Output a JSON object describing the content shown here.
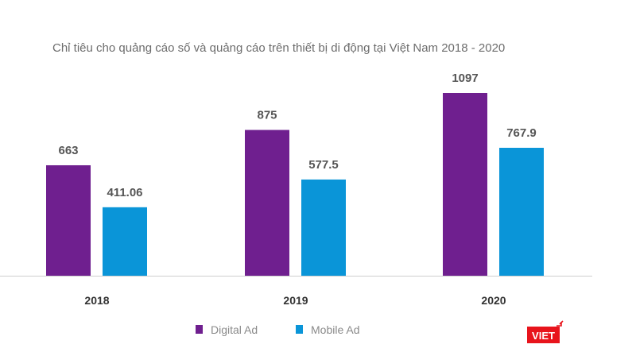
{
  "chart_data": {
    "type": "bar",
    "title": "Chỉ tiêu cho quảng cáo số và quảng cáo trên thiết bị di động tại Việt Nam 2018 - 2020",
    "categories": [
      "2018",
      "2019",
      "2020"
    ],
    "series": [
      {
        "name": "Digital Ad",
        "values": [
          663,
          875,
          1097
        ],
        "labels": [
          "663",
          "875",
          "1097"
        ],
        "color": "#6f1f8f"
      },
      {
        "name": "Mobile Ad",
        "values": [
          411.06,
          577.5,
          767.9
        ],
        "labels": [
          "411.06",
          "577.5",
          "767.9"
        ],
        "color": "#0a95d8"
      }
    ],
    "ylim": [
      0,
      1100
    ],
    "grid": false,
    "legend_position": "bottom",
    "xlabel": "",
    "ylabel": ""
  },
  "logo": {
    "text": "VIET",
    "color": "#e8141c"
  }
}
